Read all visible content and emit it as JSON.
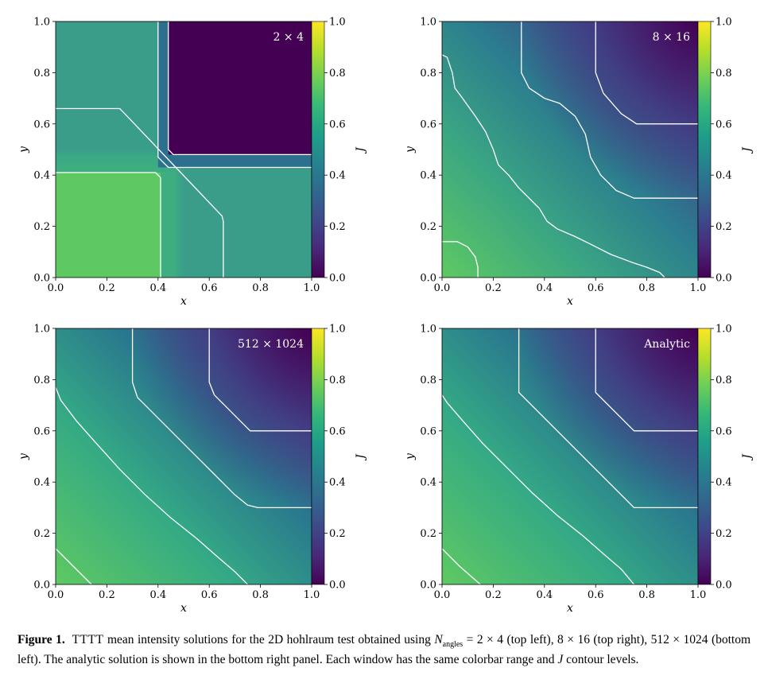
{
  "chart_data": [
    {
      "type": "heatmap",
      "label": "2 × 4",
      "xlabel": "x",
      "ylabel": "y",
      "colorbar_label": "J",
      "xlim": [
        0,
        1
      ],
      "ylim": [
        0,
        1
      ],
      "clim": [
        0,
        1
      ],
      "xticks": [
        "0.0",
        "0.2",
        "0.4",
        "0.6",
        "0.8",
        "1.0"
      ],
      "yticks": [
        "0.0",
        "0.2",
        "0.4",
        "0.6",
        "0.8",
        "1.0"
      ],
      "cticks": [
        "0.0",
        "0.2",
        "0.4",
        "0.6",
        "0.8",
        "1.0"
      ],
      "contours": [
        [
          [
            0.44,
            1.0
          ],
          [
            0.44,
            0.5
          ],
          [
            0.46,
            0.48
          ],
          [
            1.0,
            0.48
          ]
        ],
        [
          [
            0.4,
            1.0
          ],
          [
            0.4,
            0.47
          ],
          [
            0.44,
            0.43
          ],
          [
            1.0,
            0.43
          ]
        ],
        [
          [
            0.0,
            0.66
          ],
          [
            0.25,
            0.66
          ],
          [
            0.27,
            0.64
          ],
          [
            0.65,
            0.24
          ],
          [
            0.655,
            0.22
          ],
          [
            0.655,
            0.0
          ]
        ],
        [
          [
            0.0,
            0.41
          ],
          [
            0.39,
            0.41
          ],
          [
            0.41,
            0.39
          ],
          [
            0.41,
            0.0
          ]
        ]
      ]
    },
    {
      "type": "heatmap",
      "label": "8 × 16",
      "xlabel": "x",
      "ylabel": "y",
      "colorbar_label": "J",
      "xlim": [
        0,
        1
      ],
      "ylim": [
        0,
        1
      ],
      "clim": [
        0,
        1
      ],
      "xticks": [
        "0.0",
        "0.2",
        "0.4",
        "0.6",
        "0.8",
        "1.0"
      ],
      "yticks": [
        "0.0",
        "0.2",
        "0.4",
        "0.6",
        "0.8",
        "1.0"
      ],
      "cticks": [
        "0.0",
        "0.2",
        "0.4",
        "0.6",
        "0.8",
        "1.0"
      ],
      "contours": [
        [
          [
            0.6,
            1.0
          ],
          [
            0.6,
            0.8
          ],
          [
            0.63,
            0.72
          ],
          [
            0.7,
            0.64
          ],
          [
            0.76,
            0.6
          ],
          [
            1.0,
            0.6
          ]
        ],
        [
          [
            0.31,
            1.0
          ],
          [
            0.31,
            0.8
          ],
          [
            0.34,
            0.74
          ],
          [
            0.4,
            0.7
          ],
          [
            0.46,
            0.68
          ],
          [
            0.52,
            0.63
          ],
          [
            0.56,
            0.56
          ],
          [
            0.58,
            0.47
          ],
          [
            0.62,
            0.4
          ],
          [
            0.68,
            0.34
          ],
          [
            0.75,
            0.31
          ],
          [
            1.0,
            0.31
          ]
        ],
        [
          [
            0.0,
            0.87
          ],
          [
            0.02,
            0.86
          ],
          [
            0.04,
            0.8
          ],
          [
            0.05,
            0.74
          ],
          [
            0.08,
            0.7
          ],
          [
            0.13,
            0.63
          ],
          [
            0.17,
            0.57
          ],
          [
            0.2,
            0.5
          ],
          [
            0.22,
            0.44
          ],
          [
            0.26,
            0.4
          ],
          [
            0.3,
            0.35
          ],
          [
            0.34,
            0.31
          ],
          [
            0.38,
            0.27
          ],
          [
            0.41,
            0.22
          ],
          [
            0.45,
            0.19
          ],
          [
            0.52,
            0.16
          ],
          [
            0.58,
            0.13
          ],
          [
            0.66,
            0.09
          ],
          [
            0.74,
            0.06
          ],
          [
            0.8,
            0.04
          ],
          [
            0.85,
            0.02
          ],
          [
            0.87,
            0.0
          ]
        ],
        [
          [
            0.0,
            0.14
          ],
          [
            0.06,
            0.14
          ],
          [
            0.1,
            0.12
          ],
          [
            0.13,
            0.08
          ],
          [
            0.14,
            0.04
          ],
          [
            0.14,
            0.0
          ]
        ]
      ]
    },
    {
      "type": "heatmap",
      "label": "512 × 1024",
      "xlabel": "x",
      "ylabel": "y",
      "colorbar_label": "J",
      "xlim": [
        0,
        1
      ],
      "ylim": [
        0,
        1
      ],
      "clim": [
        0,
        1
      ],
      "xticks": [
        "0.0",
        "0.2",
        "0.4",
        "0.6",
        "0.8",
        "1.0"
      ],
      "yticks": [
        "0.0",
        "0.2",
        "0.4",
        "0.6",
        "0.8",
        "1.0"
      ],
      "cticks": [
        "0.0",
        "0.2",
        "0.4",
        "0.6",
        "0.8",
        "1.0"
      ],
      "contours": [
        [
          [
            0.6,
            1.0
          ],
          [
            0.6,
            0.79
          ],
          [
            0.62,
            0.74
          ],
          [
            0.66,
            0.7
          ],
          [
            0.72,
            0.64
          ],
          [
            0.76,
            0.6
          ],
          [
            1.0,
            0.6
          ]
        ],
        [
          [
            0.3,
            1.0
          ],
          [
            0.3,
            0.79
          ],
          [
            0.32,
            0.73
          ],
          [
            0.38,
            0.67
          ],
          [
            0.5,
            0.55
          ],
          [
            0.62,
            0.43
          ],
          [
            0.7,
            0.35
          ],
          [
            0.75,
            0.31
          ],
          [
            0.79,
            0.3
          ],
          [
            1.0,
            0.3
          ]
        ],
        [
          [
            0.0,
            0.77
          ],
          [
            0.02,
            0.72
          ],
          [
            0.08,
            0.64
          ],
          [
            0.16,
            0.55
          ],
          [
            0.25,
            0.45
          ],
          [
            0.35,
            0.35
          ],
          [
            0.45,
            0.26
          ],
          [
            0.55,
            0.18
          ],
          [
            0.63,
            0.11
          ],
          [
            0.7,
            0.05
          ],
          [
            0.75,
            0.0
          ]
        ],
        [
          [
            0.0,
            0.14
          ],
          [
            0.07,
            0.07
          ],
          [
            0.14,
            0.0
          ]
        ]
      ]
    },
    {
      "type": "heatmap",
      "label": "Analytic",
      "xlabel": "x",
      "ylabel": "y",
      "colorbar_label": "J",
      "xlim": [
        0,
        1
      ],
      "ylim": [
        0,
        1
      ],
      "clim": [
        0,
        1
      ],
      "xticks": [
        "0.0",
        "0.2",
        "0.4",
        "0.6",
        "0.8",
        "1.0"
      ],
      "yticks": [
        "0.0",
        "0.2",
        "0.4",
        "0.6",
        "0.8",
        "1.0"
      ],
      "cticks": [
        "0.0",
        "0.2",
        "0.4",
        "0.6",
        "0.8",
        "1.0"
      ],
      "contours": [
        [
          [
            0.6,
            1.0
          ],
          [
            0.6,
            0.75
          ],
          [
            0.75,
            0.6
          ],
          [
            1.0,
            0.6
          ]
        ],
        [
          [
            0.3,
            1.0
          ],
          [
            0.3,
            0.75
          ],
          [
            0.75,
            0.3
          ],
          [
            1.0,
            0.3
          ]
        ],
        [
          [
            0.0,
            0.74
          ],
          [
            0.02,
            0.71
          ],
          [
            0.08,
            0.64
          ],
          [
            0.16,
            0.55
          ],
          [
            0.25,
            0.46
          ],
          [
            0.35,
            0.36
          ],
          [
            0.45,
            0.27
          ],
          [
            0.55,
            0.19
          ],
          [
            0.63,
            0.12
          ],
          [
            0.7,
            0.06
          ],
          [
            0.75,
            0.0
          ]
        ],
        [
          [
            0.0,
            0.14
          ],
          [
            0.07,
            0.07
          ],
          [
            0.15,
            0.0
          ]
        ]
      ]
    }
  ],
  "caption": {
    "figure_label": "Figure 1.",
    "method": "TTTT",
    "text_1": " mean intensity solutions for the 2D hohlraum test obtained using ",
    "n_symbol": "N",
    "n_subscript": "angles",
    "text_2": " = 2 × 4 (top left), 8 × 16 (top right), 512 × 1024 (bottom left). The analytic solution is shown in the bottom right panel. Each window has the same colorbar range and ",
    "j_symbol": "J",
    "text_3": " contour levels."
  },
  "colormap": [
    "#440154",
    "#482878",
    "#3e4989",
    "#31688e",
    "#26828e",
    "#1f9e89",
    "#35b779",
    "#6ece58",
    "#b5de2b",
    "#fde725"
  ]
}
